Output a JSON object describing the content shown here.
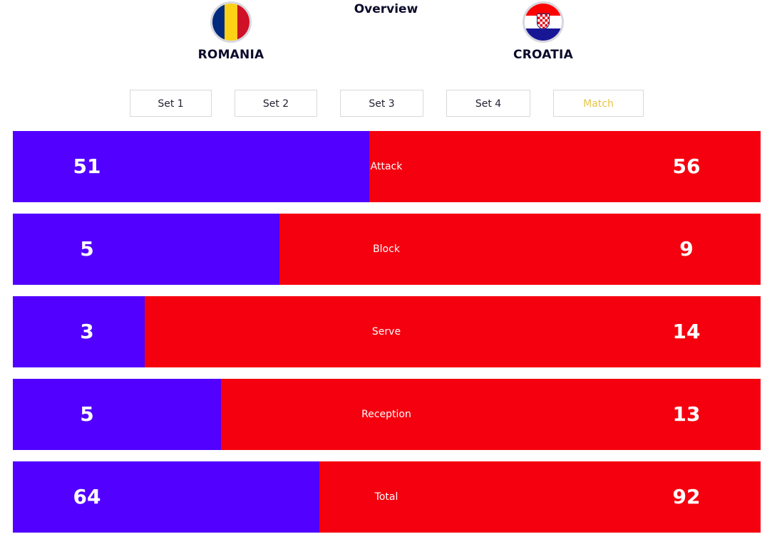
{
  "header": {
    "title": "Overview"
  },
  "teams": {
    "home": {
      "name": "ROMANIA",
      "flag_icon": "romania-flag-icon",
      "color": "#5200ff"
    },
    "away": {
      "name": "CROATIA",
      "flag_icon": "croatia-flag-icon",
      "color": "#f5000f"
    }
  },
  "tabs": [
    {
      "label": "Set 1",
      "active": false
    },
    {
      "label": "Set 2",
      "active": false
    },
    {
      "label": "Set 3",
      "active": false
    },
    {
      "label": "Set 4",
      "active": false
    },
    {
      "label": "Match",
      "active": true
    }
  ],
  "stats": [
    {
      "label": "Attack",
      "home": "51",
      "away": "56",
      "home_share": 0.477
    },
    {
      "label": "Block",
      "home": "5",
      "away": "9",
      "home_share": 0.357
    },
    {
      "label": "Serve",
      "home": "3",
      "away": "14",
      "home_share": 0.176
    },
    {
      "label": "Reception",
      "home": "5",
      "away": "13",
      "home_share": 0.278
    },
    {
      "label": "Total",
      "home": "64",
      "away": "92",
      "home_share": 0.41
    }
  ],
  "colors": {
    "active_tab": "#e6c54a",
    "romania_flag": [
      "#002b7f",
      "#fcd116",
      "#ce1126"
    ],
    "croatia_flag": [
      "#ff0000",
      "#ffffff",
      "#171796"
    ]
  }
}
